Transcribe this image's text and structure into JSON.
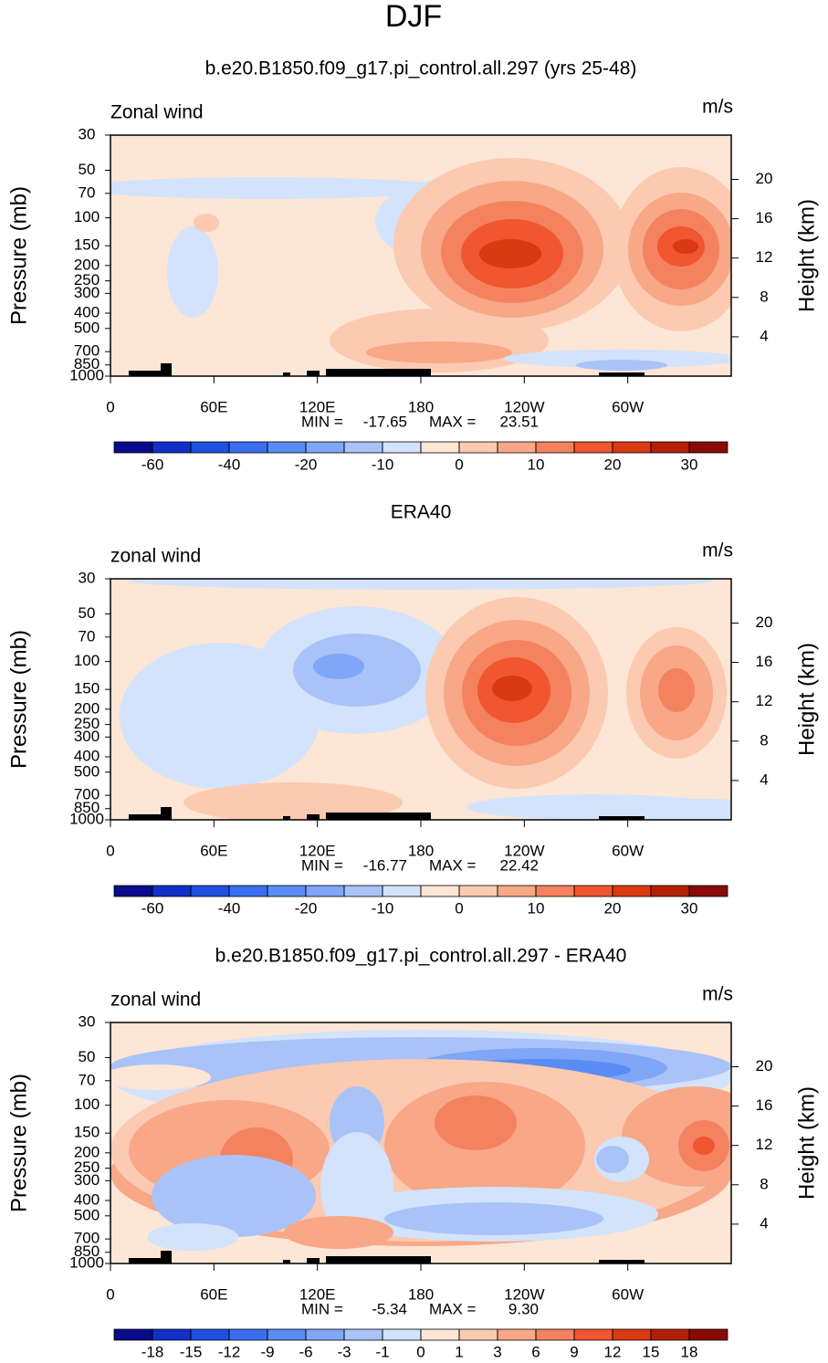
{
  "figure_title": "DJF",
  "chart_data": [
    {
      "type": "contour",
      "title": "b.e20.B1850.f09_g17.pi_control.all.297 (yrs 25-48)",
      "field_label": "Zonal wind",
      "units": "m/s",
      "ylabel": "Pressure (mb)",
      "y2label": "Height (km)",
      "log_y": true,
      "xlim": [
        0,
        360
      ],
      "xticks": [
        0,
        {
          "value": 60,
          "label": "60E"
        },
        {
          "value": 120,
          "label": "120E"
        },
        180,
        {
          "value": 240,
          "label": "120W"
        },
        {
          "value": 300,
          "label": "60W"
        }
      ],
      "ylim": [
        1000,
        30
      ],
      "yticks": [
        30,
        50,
        70,
        100,
        150,
        200,
        250,
        300,
        400,
        500,
        700,
        850,
        1000
      ],
      "y2lim": [
        0,
        24.5
      ],
      "y2ticks": [
        4,
        8,
        12,
        16,
        20
      ],
      "min_label": "MIN =",
      "min": -17.65,
      "max_label": "MAX =",
      "max": 23.51,
      "colorbar": {
        "levels": [
          -60,
          -50,
          -40,
          -30,
          -20,
          -15,
          -10,
          -5,
          0,
          5,
          10,
          15,
          20,
          25,
          30
        ],
        "ticks": [
          -60,
          -40,
          -20,
          -10,
          0,
          10,
          20,
          30
        ],
        "colors": [
          "#0a0a8c",
          "#1030c8",
          "#1f50e0",
          "#3a6ef0",
          "#5a8cf5",
          "#7fa6f7",
          "#a9c3f8",
          "#d2e3fb",
          "#fde6d6",
          "#fbcab1",
          "#f8a787",
          "#f5825e",
          "#f0562f",
          "#d93a12",
          "#b52005",
          "#8a0b05"
        ]
      }
    },
    {
      "type": "contour",
      "title": "ERA40",
      "field_label": "zonal wind",
      "units": "m/s",
      "ylabel": "Pressure (mb)",
      "y2label": "Height (km)",
      "log_y": true,
      "xlim": [
        0,
        360
      ],
      "xticks": [
        0,
        {
          "value": 60,
          "label": "60E"
        },
        {
          "value": 120,
          "label": "120E"
        },
        180,
        {
          "value": 240,
          "label": "120W"
        },
        {
          "value": 300,
          "label": "60W"
        }
      ],
      "ylim": [
        1000,
        30
      ],
      "yticks": [
        30,
        50,
        70,
        100,
        150,
        200,
        250,
        300,
        400,
        500,
        700,
        850,
        1000
      ],
      "y2lim": [
        0,
        24.5
      ],
      "y2ticks": [
        4,
        8,
        12,
        16,
        20
      ],
      "min_label": "MIN =",
      "min": -16.77,
      "max_label": "MAX =",
      "max": 22.42,
      "colorbar": {
        "levels": [
          -60,
          -50,
          -40,
          -30,
          -20,
          -15,
          -10,
          -5,
          0,
          5,
          10,
          15,
          20,
          25,
          30
        ],
        "ticks": [
          -60,
          -40,
          -20,
          -10,
          0,
          10,
          20,
          30
        ],
        "colors": [
          "#0a0a8c",
          "#1030c8",
          "#1f50e0",
          "#3a6ef0",
          "#5a8cf5",
          "#7fa6f7",
          "#a9c3f8",
          "#d2e3fb",
          "#fde6d6",
          "#fbcab1",
          "#f8a787",
          "#f5825e",
          "#f0562f",
          "#d93a12",
          "#b52005",
          "#8a0b05"
        ]
      }
    },
    {
      "type": "contour",
      "title": "b.e20.B1850.f09_g17.pi_control.all.297 - ERA40",
      "field_label": "zonal wind",
      "units": "m/s",
      "ylabel": "Pressure (mb)",
      "y2label": "Height (km)",
      "log_y": true,
      "xlim": [
        0,
        360
      ],
      "xticks": [
        0,
        {
          "value": 60,
          "label": "60E"
        },
        {
          "value": 120,
          "label": "120E"
        },
        180,
        {
          "value": 240,
          "label": "120W"
        },
        {
          "value": 300,
          "label": "60W"
        }
      ],
      "ylim": [
        1000,
        30
      ],
      "yticks": [
        30,
        50,
        70,
        100,
        150,
        200,
        250,
        300,
        400,
        500,
        700,
        850,
        1000
      ],
      "y2lim": [
        0,
        24.5
      ],
      "y2ticks": [
        4,
        8,
        12,
        16,
        20
      ],
      "min_label": "MIN =",
      "min": -5.34,
      "max_label": "MAX =",
      "max": {
        "value": 9.3,
        "label": "9.30"
      },
      "colorbar": {
        "levels": [
          -18,
          -15,
          -12,
          -9,
          -6,
          -3,
          -1,
          0,
          1,
          3,
          6,
          9,
          12,
          15,
          18
        ],
        "ticks": [
          -18,
          -15,
          -12,
          -9,
          -6,
          -3,
          -1,
          0,
          1,
          3,
          6,
          9,
          12,
          15,
          18
        ],
        "colors": [
          "#0a0a8c",
          "#1030c8",
          "#1f50e0",
          "#3a6ef0",
          "#5a8cf5",
          "#7fa6f7",
          "#a9c3f8",
          "#d2e3fb",
          "#fde6d6",
          "#fbcab1",
          "#f8a787",
          "#f5825e",
          "#f0562f",
          "#d93a12",
          "#b52005",
          "#8a0b05"
        ]
      }
    }
  ]
}
